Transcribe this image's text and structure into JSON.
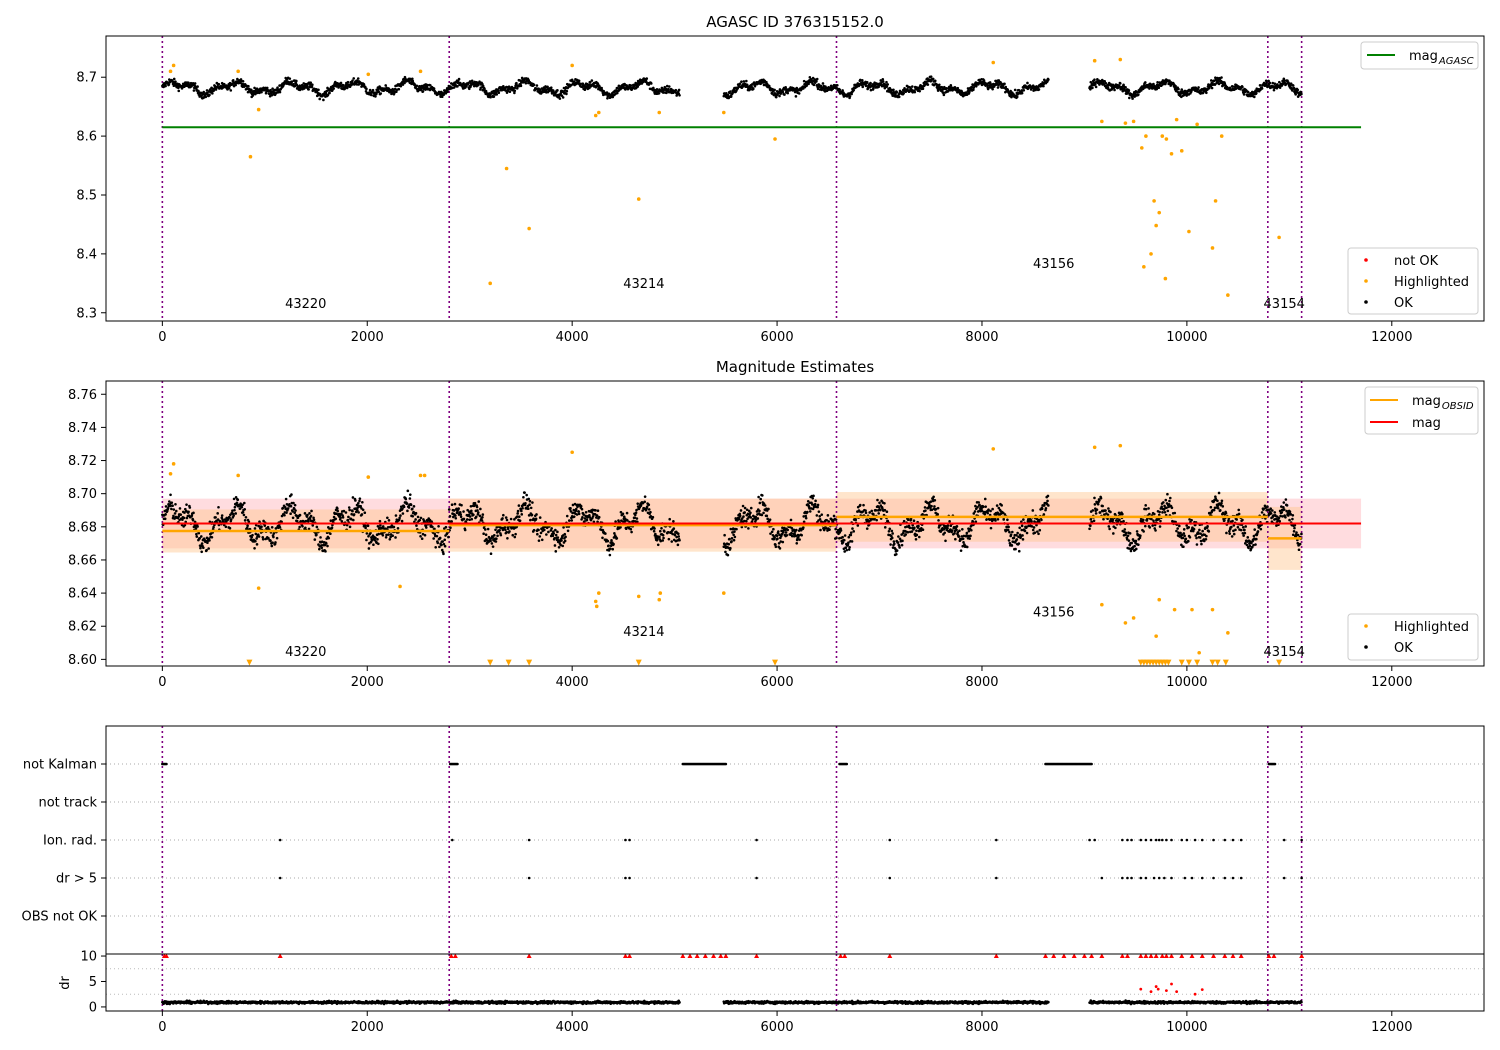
{
  "chart_data": [
    {
      "type": "scatter",
      "title": "AGASC ID 376315152.0",
      "xlim": [
        -550,
        12900
      ],
      "ylim": [
        8.286,
        8.77
      ],
      "xticks": [
        0,
        2000,
        4000,
        6000,
        8000,
        10000,
        12000
      ],
      "yticks": [
        8.3,
        8.4,
        8.5,
        8.6,
        8.7
      ],
      "obs_boundaries": [
        0,
        2800,
        6580,
        10790,
        11120
      ],
      "obsid_labels": [
        {
          "text": "43220",
          "x": 1400,
          "y": 8.308
        },
        {
          "text": "43214",
          "x": 4700,
          "y": 8.342
        },
        {
          "text": "43156",
          "x": 8700,
          "y": 8.376
        },
        {
          "text": "43154",
          "x": 10950,
          "y": 8.308
        }
      ],
      "hlines": [
        {
          "name": "mag_AGASC",
          "y": 8.615,
          "x0": 0,
          "x1": 11700,
          "color": "#008000"
        }
      ],
      "series": [
        {
          "name": "OK",
          "color": "#000000",
          "x_ranges": [
            [
              0,
              5050
            ],
            [
              5480,
              8650
            ],
            [
              9050,
              11120
            ]
          ],
          "y_center": 8.682,
          "y_spread": 0.022
        },
        {
          "name": "Highlighted",
          "color": "#ffa500",
          "x": [
            80,
            110,
            740,
            860,
            940,
            2010,
            2520,
            3200,
            3360,
            3580,
            4000,
            4230,
            4260,
            4650,
            4850,
            5480,
            5980,
            8110,
            9100,
            9170,
            9350,
            9400,
            9480,
            9560,
            9580,
            9600,
            9650,
            9680,
            9700,
            9730,
            9760,
            9790,
            9800,
            9850,
            9900,
            9950,
            10020,
            10100,
            10250,
            10280,
            10340,
            10400,
            10900
          ],
          "y": [
            8.71,
            8.72,
            8.71,
            8.565,
            8.645,
            8.705,
            8.71,
            8.35,
            8.545,
            8.443,
            8.72,
            8.635,
            8.64,
            8.493,
            8.64,
            8.64,
            8.595,
            8.725,
            8.728,
            8.625,
            8.73,
            8.622,
            8.625,
            8.58,
            8.378,
            8.6,
            8.4,
            8.49,
            8.448,
            8.47,
            8.6,
            8.358,
            8.595,
            8.57,
            8.628,
            8.575,
            8.438,
            8.62,
            8.41,
            8.49,
            8.6,
            8.33,
            8.428
          ]
        },
        {
          "name": "not OK",
          "color": "#ff0000",
          "x": [],
          "y": []
        }
      ],
      "legend_top": [
        {
          "label": "mag",
          "sub": "AGASC",
          "color": "#008000",
          "kind": "line"
        }
      ],
      "legend_bottom": [
        {
          "label": "not OK",
          "color": "#ff0000",
          "kind": "dot"
        },
        {
          "label": "Highlighted",
          "color": "#ffa500",
          "kind": "dot"
        },
        {
          "label": "OK",
          "color": "#000000",
          "kind": "dot"
        }
      ],
      "legend_placement": [
        "upper right",
        "lower right"
      ]
    },
    {
      "type": "scatter",
      "title": "Magnitude Estimates",
      "xlim": [
        -550,
        12900
      ],
      "ylim": [
        8.596,
        8.768
      ],
      "xticks": [
        0,
        2000,
        4000,
        6000,
        8000,
        10000,
        12000
      ],
      "yticks": [
        8.6,
        8.62,
        8.64,
        8.66,
        8.68,
        8.7,
        8.72,
        8.74,
        8.76
      ],
      "obs_boundaries": [
        0,
        2800,
        6580,
        10790,
        11120
      ],
      "obsid_labels": [
        {
          "text": "43220",
          "x": 1400,
          "y": 8.602
        },
        {
          "text": "43214",
          "x": 4700,
          "y": 8.614
        },
        {
          "text": "43156",
          "x": 8700,
          "y": 8.626
        },
        {
          "text": "43154",
          "x": 10950,
          "y": 8.602
        }
      ],
      "mag_band": {
        "y": 8.682,
        "y0": 8.667,
        "y1": 8.697,
        "x0": 0,
        "x1": 11700,
        "color": "#ff0000",
        "band_color": "#ffd0d4"
      },
      "obsid_segments": [
        {
          "x0": 0,
          "x1": 2800,
          "y": 8.6775,
          "y0": 8.6645,
          "y1": 8.6905
        },
        {
          "x0": 2800,
          "x1": 6580,
          "y": 8.681,
          "y0": 8.665,
          "y1": 8.697
        },
        {
          "x0": 6580,
          "x1": 10790,
          "y": 8.686,
          "y0": 8.671,
          "y1": 8.701
        },
        {
          "x0": 10790,
          "x1": 11120,
          "y": 8.673,
          "y0": 8.654,
          "y1": 8.692
        }
      ],
      "obsid_color": "#ffa500",
      "series": [
        {
          "name": "OK",
          "color": "#000000",
          "x_ranges": [
            [
              0,
              5050
            ],
            [
              5480,
              8650
            ],
            [
              9050,
              11120
            ]
          ],
          "y_center": 8.682,
          "y_spread": 0.022
        },
        {
          "name": "Highlighted",
          "color": "#ffa500",
          "x": [
            80,
            110,
            740,
            940,
            2010,
            2320,
            2520,
            2560,
            4000,
            4230,
            4240,
            4260,
            4650,
            4850,
            4860,
            5480,
            8110,
            9100,
            9170,
            9350,
            9400,
            9480,
            9700,
            9730,
            9880,
            10050,
            10120,
            10250,
            10400
          ],
          "y": [
            8.712,
            8.718,
            8.711,
            8.643,
            8.71,
            8.644,
            8.711,
            8.711,
            8.725,
            8.635,
            8.632,
            8.64,
            8.638,
            8.636,
            8.64,
            8.64,
            8.727,
            8.728,
            8.633,
            8.729,
            8.622,
            8.625,
            8.614,
            8.636,
            8.63,
            8.63,
            8.604,
            8.63,
            8.616
          ]
        },
        {
          "name": "Highlighted (below axis)",
          "color": "#ffa500",
          "x": [
            850,
            3200,
            3380,
            3580,
            4650,
            5980,
            9550,
            9580,
            9610,
            9640,
            9670,
            9700,
            9730,
            9760,
            9790,
            9820,
            9950,
            10020,
            10100,
            10250,
            10300,
            10380,
            10900
          ],
          "y": [
            8.598,
            8.598,
            8.598,
            8.598,
            8.598,
            8.598,
            8.598,
            8.598,
            8.598,
            8.598,
            8.598,
            8.598,
            8.598,
            8.598,
            8.598,
            8.598,
            8.598,
            8.598,
            8.598,
            8.598,
            8.598,
            8.598,
            8.598
          ]
        }
      ],
      "legend_top": [
        {
          "label": "mag",
          "sub": "OBSID",
          "color": "#ffa500",
          "kind": "line"
        },
        {
          "label": "mag",
          "sub": "",
          "color": "#ff0000",
          "kind": "line"
        }
      ],
      "legend_bottom": [
        {
          "label": "Highlighted",
          "color": "#ffa500",
          "kind": "dot"
        },
        {
          "label": "OK",
          "color": "#000000",
          "kind": "dot"
        }
      ],
      "legend_placement": [
        "upper right",
        "lower right"
      ]
    },
    {
      "type": "scatter",
      "title": "",
      "xlim": [
        -550,
        12900
      ],
      "flag_rows": [
        "not Kalman",
        "not track",
        "Ion. rad.",
        "dr > 5",
        "OBS not OK"
      ],
      "flag_points": {
        "not Kalman": [
          [
            0,
            40
          ],
          [
            2810,
            2880
          ],
          [
            5080,
            5500
          ],
          [
            6610,
            6680
          ],
          [
            8620,
            9070
          ],
          [
            10800,
            10860
          ]
        ],
        "not track": [],
        "Ion. rad.": [
          1150,
          2830,
          3580,
          4520,
          4560,
          5800,
          7100,
          8140,
          9050,
          9100,
          9370,
          9420,
          9460,
          9550,
          9600,
          9650,
          9700,
          9730,
          9760,
          9800,
          9850,
          9950,
          10000,
          10080,
          10150,
          10260,
          10370,
          10450,
          10530,
          10950,
          11120
        ],
        "dr > 5": [
          1150,
          3580,
          4520,
          4560,
          5800,
          7100,
          8140,
          9170,
          9370,
          9420,
          9460,
          9550,
          9600,
          9680,
          9730,
          9780,
          9850,
          9980,
          10050,
          10150,
          10260,
          10370,
          10450,
          10530,
          10950,
          11120
        ],
        "OBS not OK": []
      },
      "flag_color": "#000000"
    },
    {
      "type": "scatter",
      "title": "",
      "ylabel": "dr",
      "xlim": [
        -550,
        12900
      ],
      "ylim": [
        -0.8,
        10.4
      ],
      "xticks": [
        0,
        2000,
        4000,
        6000,
        8000,
        10000,
        12000
      ],
      "yticks": [
        0,
        5,
        10
      ],
      "series": [
        {
          "name": "dr OK",
          "color": "#000000",
          "x_ranges": [
            [
              0,
              5050
            ],
            [
              5480,
              8650
            ],
            [
              9050,
              11120
            ]
          ],
          "y_center": 0.9,
          "y_spread": 0.7
        },
        {
          "name": "dr high",
          "color": "#ff0000",
          "x": [
            20,
            40,
            1150,
            2820,
            2860,
            3580,
            4520,
            4560,
            5080,
            5150,
            5220,
            5300,
            5380,
            5450,
            5500,
            5800,
            6620,
            6660,
            7100,
            8140,
            8620,
            8700,
            8800,
            8900,
            9000,
            9070,
            9170,
            9370,
            9420,
            9550,
            9600,
            9650,
            9700,
            9760,
            9800,
            9850,
            9950,
            10050,
            10150,
            10260,
            10370,
            10450,
            10530,
            10800,
            10850,
            11120
          ],
          "y": [
            10,
            10,
            10,
            10,
            10,
            10,
            10,
            10,
            10,
            10,
            10,
            10,
            10,
            10,
            10,
            10,
            10,
            10,
            10,
            10,
            10,
            10,
            10,
            10,
            10,
            10,
            10,
            10,
            10,
            10,
            10,
            10,
            10,
            10,
            10,
            10,
            10,
            10,
            10,
            10,
            10,
            10,
            10,
            10,
            10,
            10
          ]
        },
        {
          "name": "dr mid",
          "color": "#ff0000",
          "x": [
            9550,
            9650,
            9700,
            9720,
            9800,
            9850,
            9900,
            10080,
            10150
          ],
          "y": [
            3.5,
            3.0,
            4.0,
            3.5,
            3.2,
            4.5,
            3.0,
            2.5,
            3.4
          ]
        }
      ],
      "obs_boundaries": [
        0,
        2800,
        6580,
        10790,
        11120
      ]
    }
  ]
}
